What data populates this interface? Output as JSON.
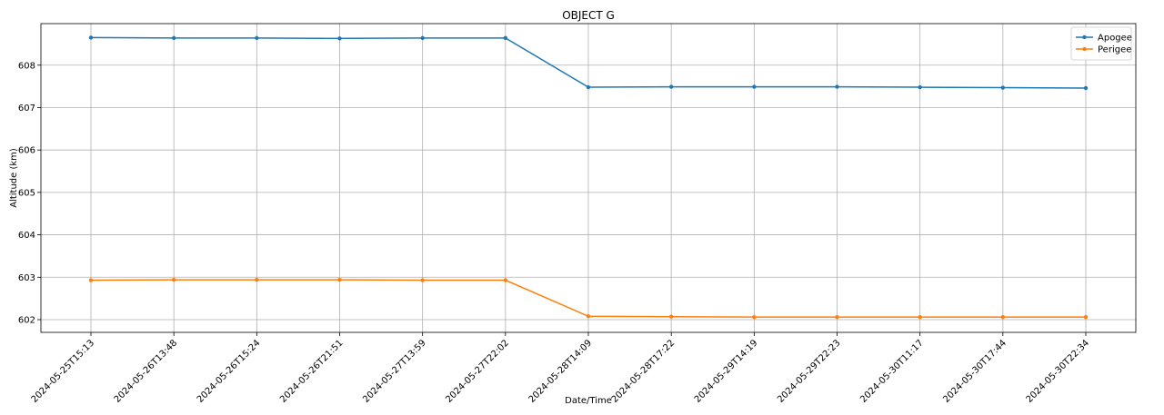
{
  "chart_data": {
    "type": "line",
    "title": "OBJECT G",
    "xlabel": "Date/Time",
    "ylabel": "Altitude (km)",
    "categories": [
      "2024-05-25T15:13",
      "2024-05-26T13:48",
      "2024-05-26T15:24",
      "2024-05-26T21:51",
      "2024-05-27T13:59",
      "2024-05-27T22:02",
      "2024-05-28T14:09",
      "2024-05-28T17:22",
      "2024-05-29T14:19",
      "2024-05-29T22:23",
      "2024-05-30T11:17",
      "2024-05-30T17:44",
      "2024-05-30T22:34"
    ],
    "ylim": [
      601.7,
      608.98
    ],
    "yticks": [
      602,
      603,
      604,
      605,
      606,
      607,
      608
    ],
    "grid": true,
    "legend_position": "top-right",
    "series": [
      {
        "name": "Apogee",
        "color": "#1f77b4",
        "values": [
          608.65,
          608.64,
          608.64,
          608.63,
          608.64,
          608.64,
          607.48,
          607.49,
          607.49,
          607.49,
          607.48,
          607.47,
          607.46
        ]
      },
      {
        "name": "Perigee",
        "color": "#ff7f0e",
        "values": [
          602.93,
          602.94,
          602.94,
          602.94,
          602.93,
          602.93,
          602.08,
          602.07,
          602.06,
          602.06,
          602.06,
          602.06,
          602.06
        ]
      }
    ]
  }
}
